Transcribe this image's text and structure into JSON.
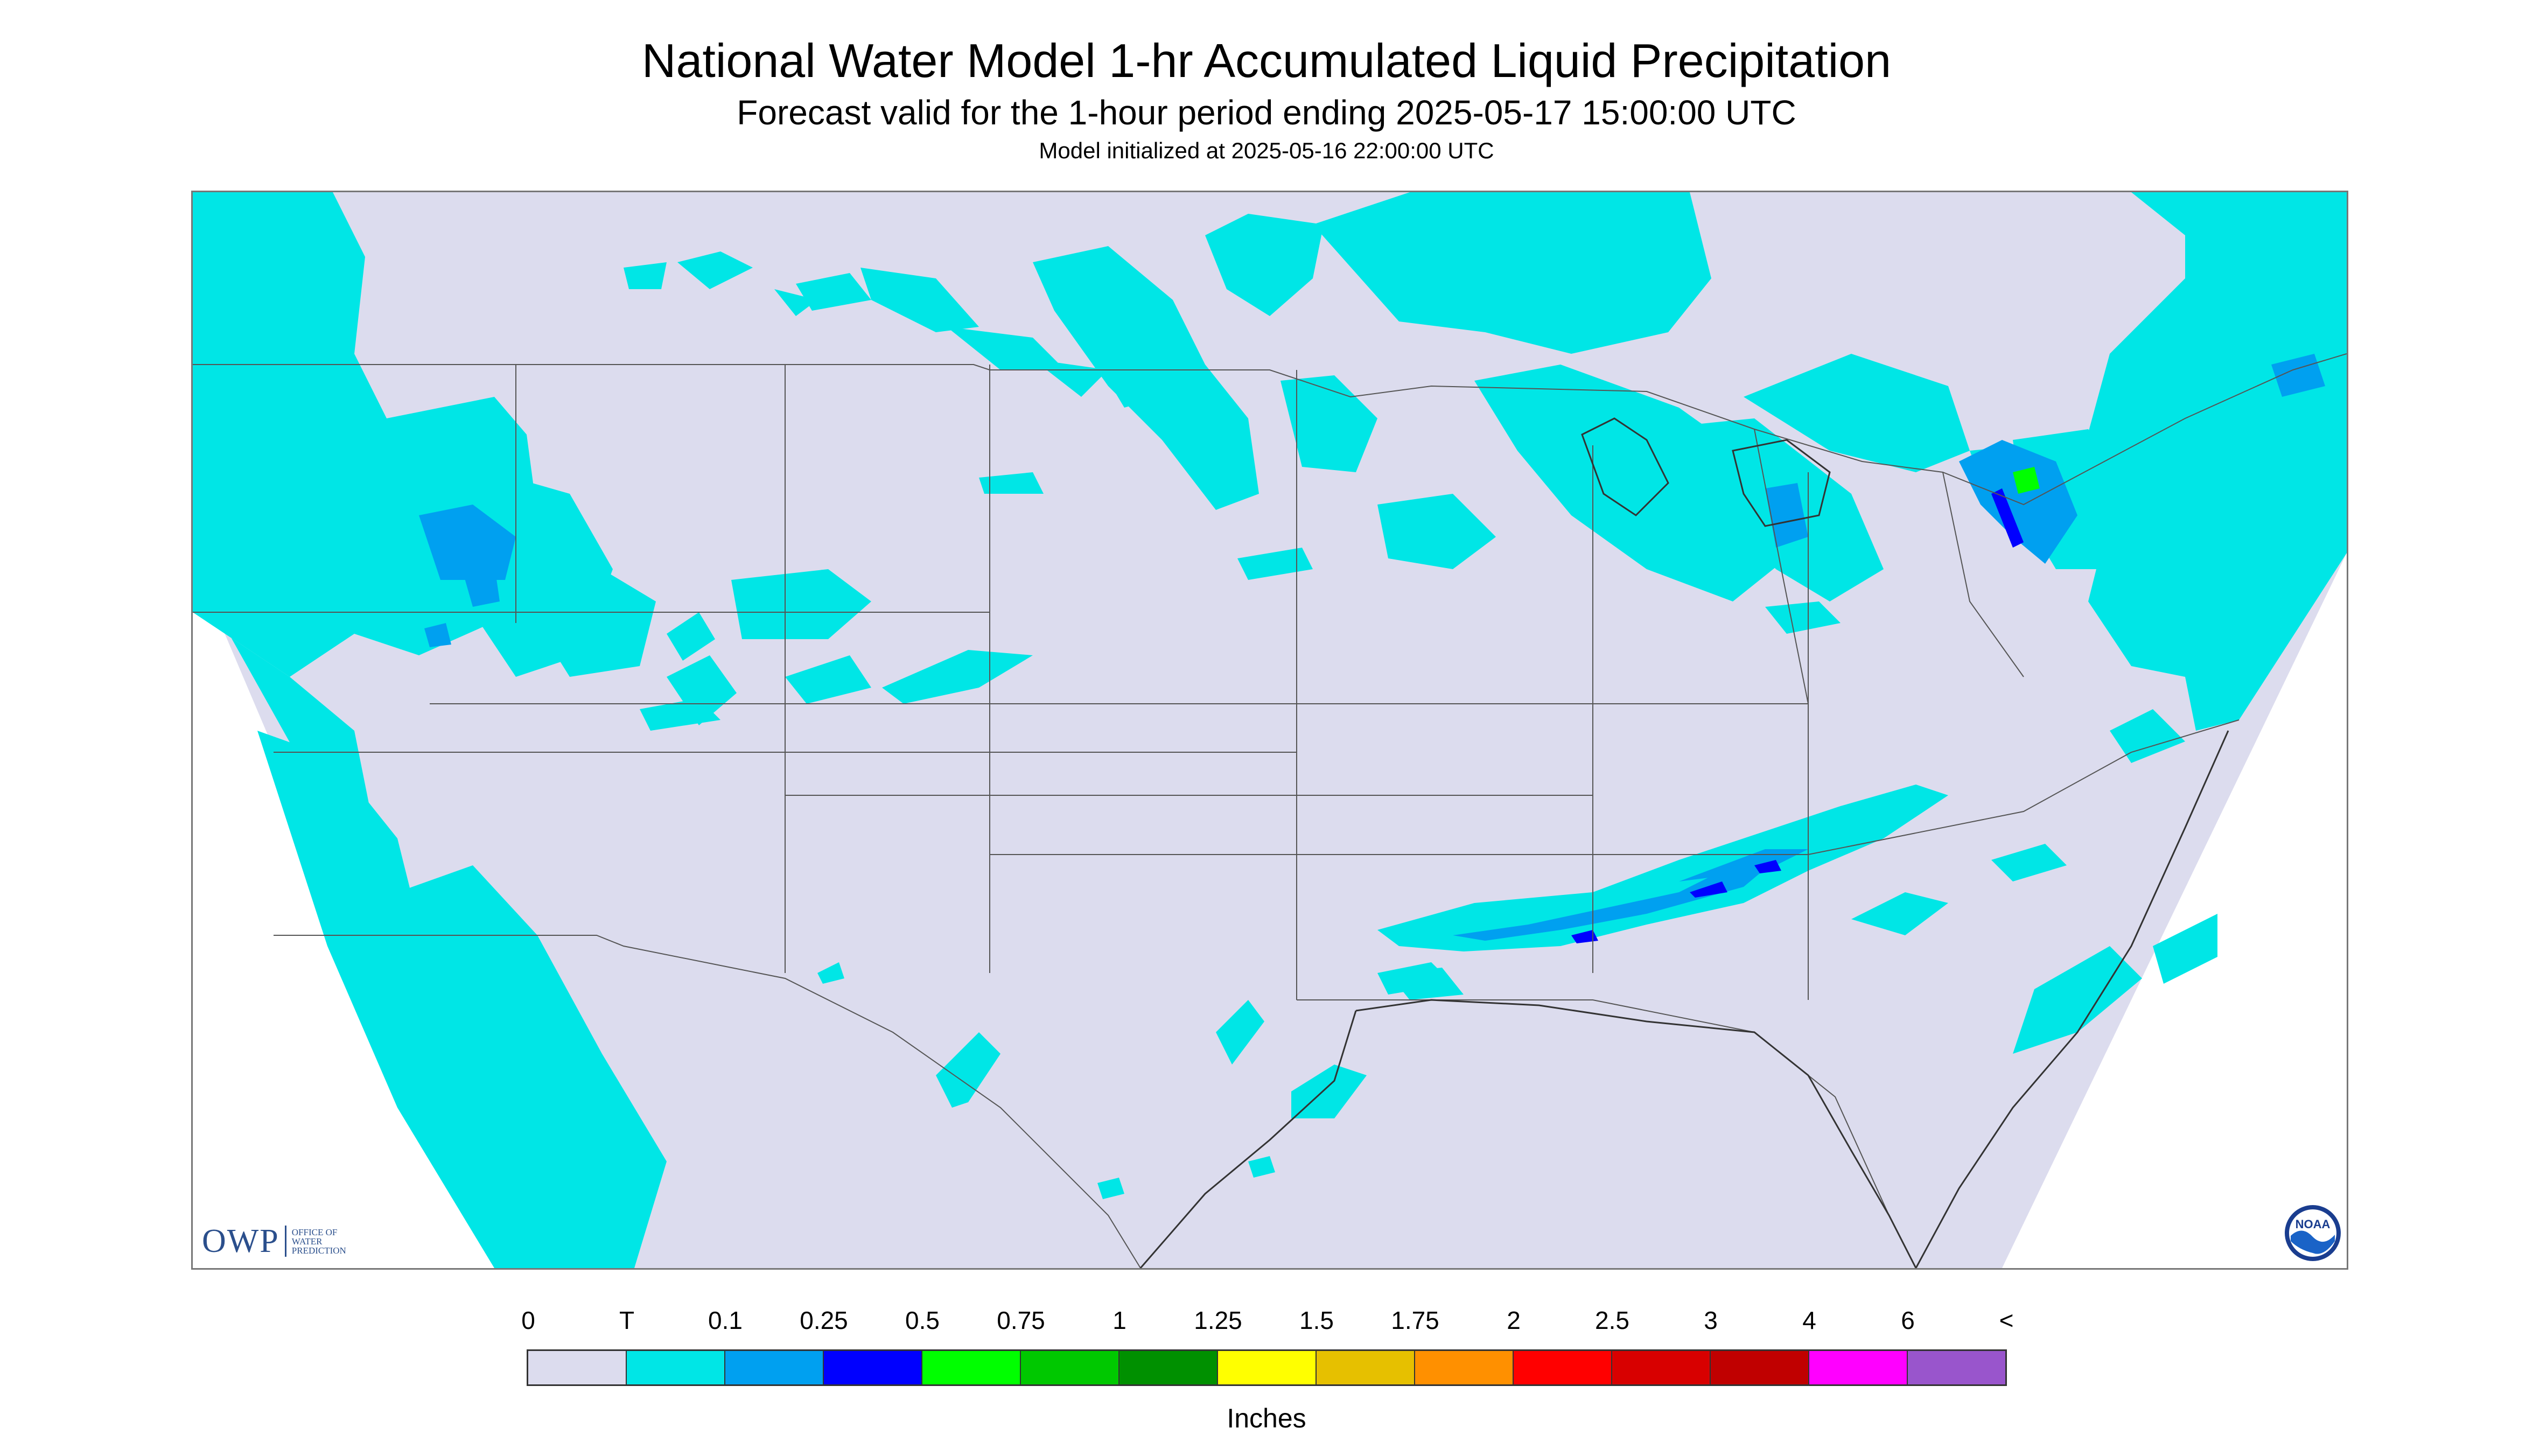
{
  "header": {
    "title": "National Water Model 1-hr Accumulated Liquid Precipitation",
    "subtitle": "Forecast valid for the 1-hour period ending 2025-05-17 15:00:00 UTC",
    "init": "Model initialized at 2025-05-16 22:00:00 UTC"
  },
  "logos": {
    "owp": {
      "text": "OWP",
      "sub": [
        "OFFICE OF",
        "WATER",
        "PREDICTION"
      ]
    },
    "noaa": {
      "text": "NOAA"
    }
  },
  "legend": {
    "labels": [
      "0",
      "T",
      "0.1",
      "0.25",
      "0.5",
      "0.75",
      "1",
      "1.25",
      "1.5",
      "1.75",
      "2",
      "2.5",
      "3",
      "4",
      "6",
      "<"
    ],
    "colors": [
      "#dcdcee",
      "#00e6e6",
      "#00a0f0",
      "#0000ff",
      "#00ff00",
      "#00c800",
      "#009000",
      "#ffff00",
      "#e6c000",
      "#ff9000",
      "#ff0000",
      "#d80000",
      "#c00000",
      "#ff00ff",
      "#9955cc"
    ],
    "units": "Inches"
  },
  "map": {
    "background_color": "#dcdcee",
    "outside_color": "#ffffff",
    "border_color": "#555555"
  }
}
